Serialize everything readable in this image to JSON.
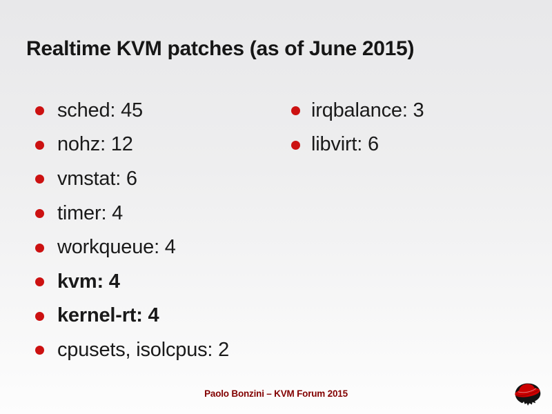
{
  "slide": {
    "title": "Realtime KVM patches (as of June 2015)",
    "columns": {
      "left": {
        "items": [
          {
            "label": "sched: 45",
            "bold": false
          },
          {
            "label": "nohz: 12",
            "bold": false
          },
          {
            "label": "vmstat: 6",
            "bold": false
          },
          {
            "label": "timer: 4",
            "bold": false
          },
          {
            "label": "workqueue: 4",
            "bold": false
          },
          {
            "label": "kvm: 4",
            "bold": true
          },
          {
            "label": "kernel-rt: 4",
            "bold": true
          },
          {
            "label": "cpusets, isolcpus: 2",
            "bold": false
          }
        ]
      },
      "right": {
        "items": [
          {
            "label": "irqbalance: 3",
            "bold": false
          },
          {
            "label": "libvirt: 6",
            "bold": false
          }
        ]
      }
    },
    "footer": {
      "credit": "Paolo Bonzini – KVM Forum 2015"
    },
    "logo": {
      "name": "redhat-shadowman-logo"
    },
    "colors": {
      "background_top": "#e8e8ea",
      "background_bottom": "#fdfdfd",
      "title_text": "#161616",
      "body_text": "#1a1a1a",
      "bullet_red": "#cc1111",
      "footer_red": "#820000",
      "hat_red": "#cc0000",
      "hat_shadow": "#131313"
    }
  }
}
